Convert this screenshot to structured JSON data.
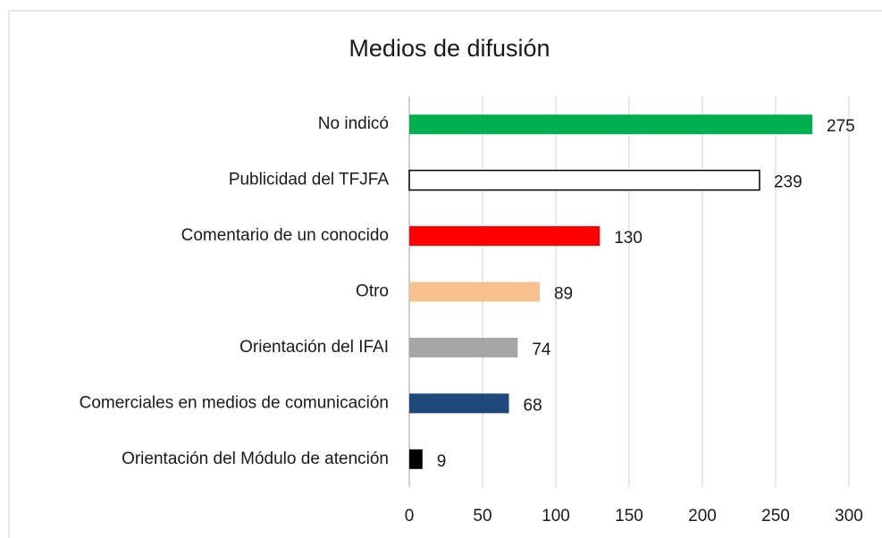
{
  "chart_data": {
    "type": "barh",
    "title": "Medios de difusión",
    "categories": [
      "No indicó",
      "Publicidad del TFJFA",
      "Comentario de un conocido",
      "Otro",
      "Orientación del IFAI",
      "Comerciales en medios de comunicación",
      "Orientación del Módulo de atención"
    ],
    "values": [
      275,
      239,
      130,
      89,
      74,
      68,
      9
    ],
    "colors": [
      "#00b050",
      "#ffffff",
      "#ff0000",
      "#f8c08f",
      "#a6a6a6",
      "#1f497d",
      "#000000"
    ],
    "edgecolors": [
      "none",
      "#000000",
      "none",
      "none",
      "none",
      "none",
      "none"
    ],
    "xlim": [
      0,
      300
    ],
    "xticks": [
      0,
      50,
      100,
      150,
      200,
      250,
      300
    ],
    "grid": true
  }
}
